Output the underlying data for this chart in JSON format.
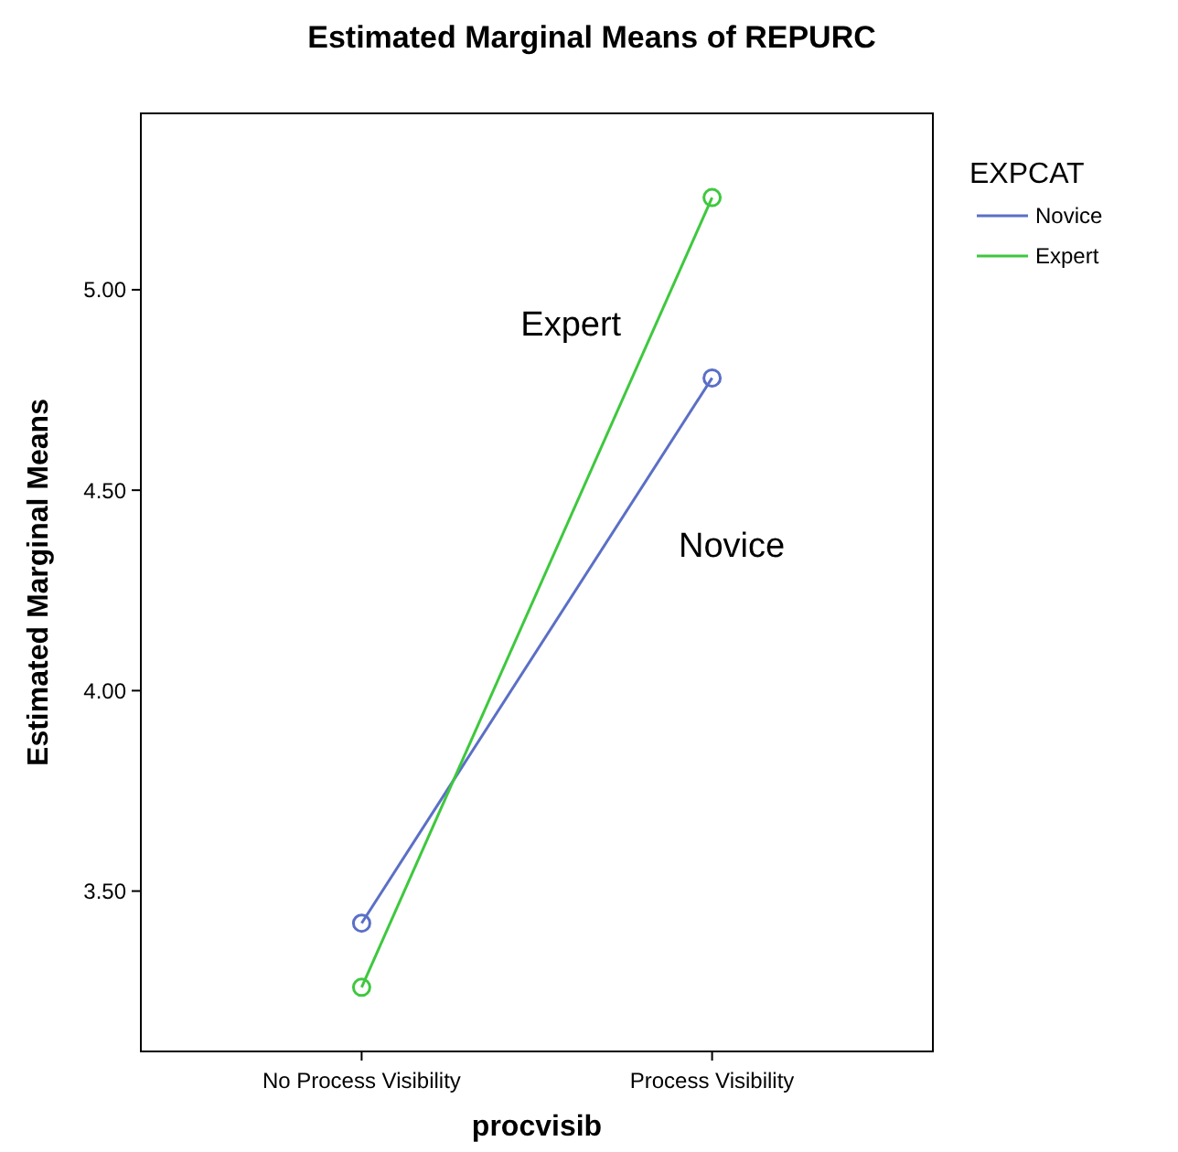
{
  "chart_data": {
    "type": "line",
    "title": "Estimated Marginal Means of REPURC",
    "xlabel": "procvisib",
    "ylabel": "Estimated Marginal Means",
    "legend_title": "EXPCAT",
    "legend": "right",
    "marker": "circle",
    "categories": [
      "No Process Visibility",
      "Process Visibility"
    ],
    "series": [
      {
        "name": "Novice",
        "color": "#5b6fc6",
        "values": [
          3.42,
          4.78
        ]
      },
      {
        "name": "Expert",
        "color": "#3ec83e",
        "values": [
          3.26,
          5.23
        ]
      }
    ],
    "ylim": [
      3.1,
      5.44
    ],
    "yticks": [
      {
        "value": 3.5,
        "label": "3.50"
      },
      {
        "value": 4,
        "label": "4.00"
      },
      {
        "value": 4.5,
        "label": "4.50"
      },
      {
        "value": 5,
        "label": "5.00"
      }
    ],
    "annotations": [
      "Expert",
      "Novice"
    ]
  }
}
